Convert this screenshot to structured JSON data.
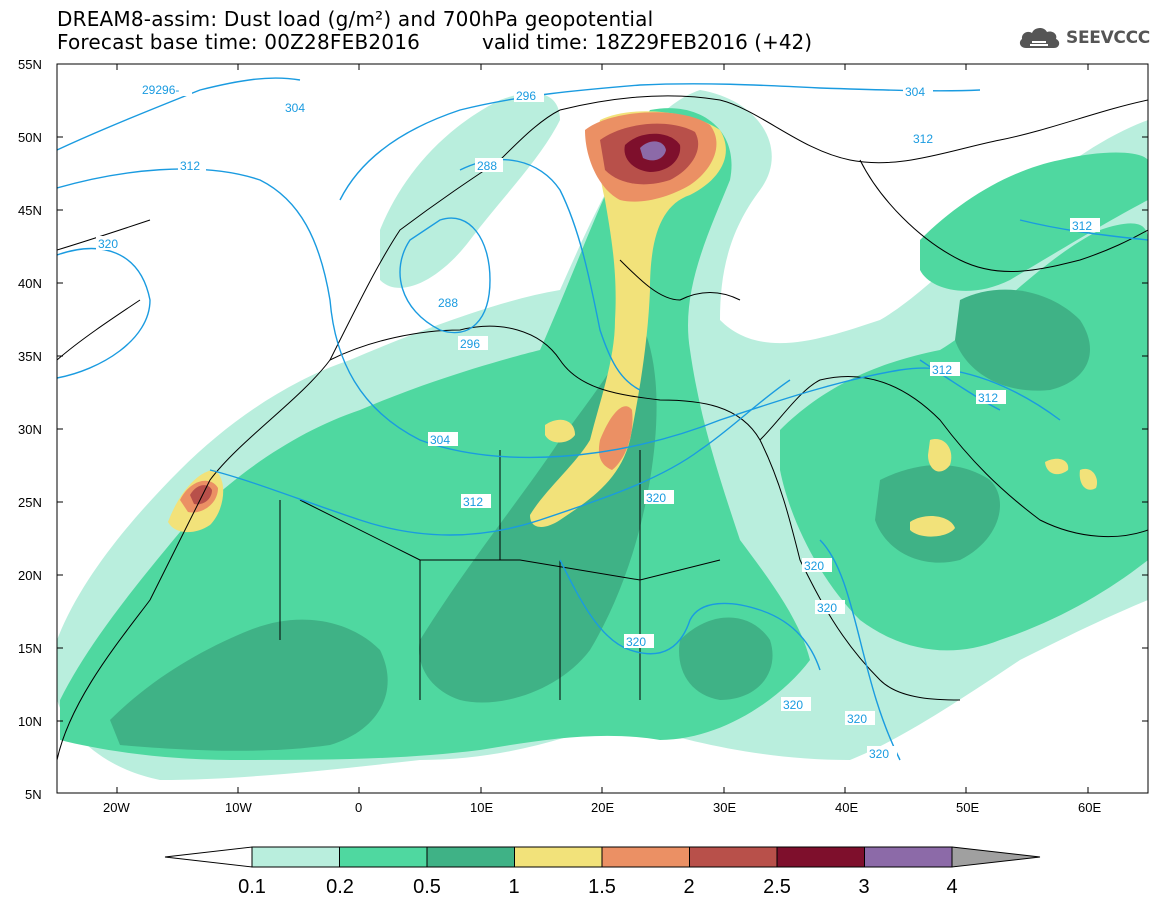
{
  "header": {
    "title": "DREAM8-assim: Dust load (g/m²) and 700hPa geopotential",
    "forecast_base": "Forecast base time: 00Z28FEB2016",
    "valid_time": "valid time: 18Z29FEB2016 (+42)",
    "logo_text": "SEEVCCC",
    "logo_icon": "cloud-icon"
  },
  "map": {
    "lon_range": [
      -25,
      65
    ],
    "lat_range": [
      5,
      55
    ],
    "lat_labels": [
      "55N",
      "50N",
      "45N",
      "40N",
      "35N",
      "30N",
      "25N",
      "20N",
      "15N",
      "10N",
      "5N"
    ],
    "lon_labels": [
      "20W",
      "10W",
      "0",
      "10E",
      "20E",
      "30E",
      "40E",
      "50E",
      "60E"
    ],
    "contour_color": "#1a9be0",
    "contour_labels": [
      "29296-",
      "304",
      "304",
      "296",
      "312",
      "312",
      "288",
      "320",
      "288",
      "296",
      "304",
      "312",
      "320",
      "312",
      "312",
      "312",
      "320",
      "320",
      "320",
      "320",
      "320",
      "320"
    ]
  },
  "colorbar": {
    "levels": [
      "0.1",
      "0.2",
      "0.5",
      "1",
      "1.5",
      "2",
      "2.5",
      "3",
      "4"
    ],
    "colors": [
      "#b9eedd",
      "#4fd8a0",
      "#3fb286",
      "#f2e27a",
      "#eb9064",
      "#b8504a",
      "#7e0f2c",
      "#8c6aa8",
      "#a0a0a0"
    ]
  },
  "colors": {
    "background": "#ffffff",
    "land_border": "#000000",
    "dust_low": "#b9eedd",
    "dust_mid": "#4fd8a0",
    "dust_high": "#3fb286"
  }
}
